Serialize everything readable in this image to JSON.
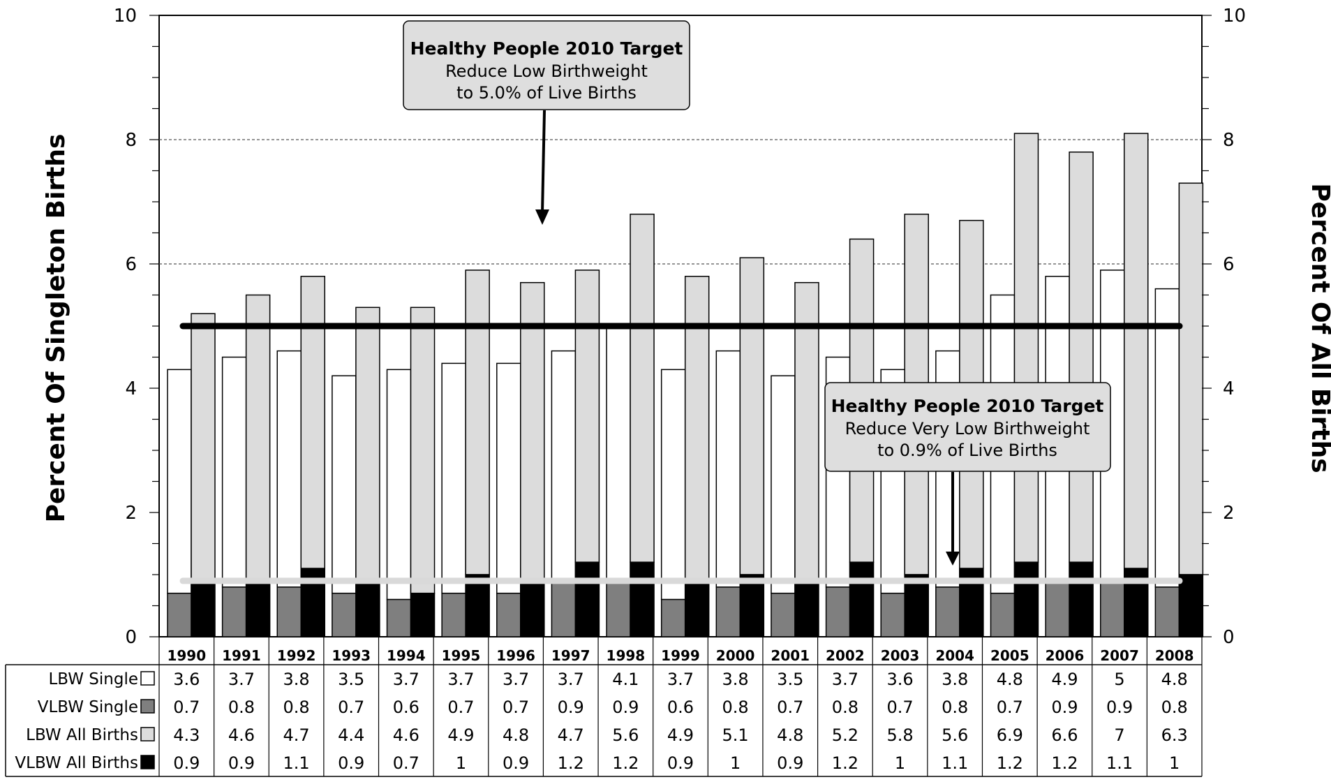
{
  "chart_data": {
    "type": "bar",
    "title": "",
    "y_left_label": "Percent Of Singleton Births",
    "y_right_label": "Percent Of All Births",
    "ylim": [
      0,
      10
    ],
    "y_ticks": [
      0,
      2,
      4,
      6,
      8,
      10
    ],
    "gridlines_at": [
      6,
      8
    ],
    "categories": [
      "1990",
      "1991",
      "1992",
      "1993",
      "1994",
      "1995",
      "1996",
      "1997",
      "1998",
      "1999",
      "2000",
      "2001",
      "2002",
      "2003",
      "2004",
      "2005",
      "2006",
      "2007",
      "2008"
    ],
    "series": [
      {
        "name": "LBW Single",
        "color": "#ffffff",
        "bar": "left",
        "values": [
          3.6,
          3.7,
          3.8,
          3.5,
          3.7,
          3.7,
          3.7,
          3.7,
          4.1,
          3.7,
          3.8,
          3.5,
          3.7,
          3.6,
          3.8,
          4.8,
          4.9,
          5,
          4.8
        ]
      },
      {
        "name": "VLBW Single",
        "color": "#7f7f7f",
        "bar": "left",
        "values": [
          0.7,
          0.8,
          0.8,
          0.7,
          0.6,
          0.7,
          0.7,
          0.9,
          0.9,
          0.6,
          0.8,
          0.7,
          0.8,
          0.7,
          0.8,
          0.7,
          0.9,
          0.9,
          0.8
        ]
      },
      {
        "name": "LBW All Births",
        "color": "#dcdcdc",
        "bar": "right",
        "values": [
          4.3,
          4.6,
          4.7,
          4.4,
          4.6,
          4.9,
          4.8,
          4.7,
          5.6,
          4.9,
          5.1,
          4.8,
          5.2,
          5.8,
          5.6,
          6.9,
          6.6,
          7,
          6.3
        ]
      },
      {
        "name": "VLBW All Births",
        "color": "#000000",
        "bar": "right",
        "values": [
          0.9,
          0.9,
          1.1,
          0.9,
          0.7,
          1,
          0.9,
          1.2,
          1.2,
          0.9,
          1,
          0.9,
          1.2,
          1,
          1.1,
          1.2,
          1.2,
          1.1,
          1
        ]
      }
    ],
    "target_lines": [
      {
        "value": 5.0,
        "color": "#000000"
      },
      {
        "value": 0.9,
        "color": "#d9d9d9"
      }
    ],
    "annotations": [
      {
        "title": "Healthy People 2010 Target",
        "line1": "Reduce Low Birthweight",
        "line2": "to 5.0% of Live Births"
      },
      {
        "title": "Healthy People 2010 Target",
        "line1": "Reduce Very Low Birthweight",
        "line2": "to 0.9% of Live Births"
      }
    ]
  }
}
